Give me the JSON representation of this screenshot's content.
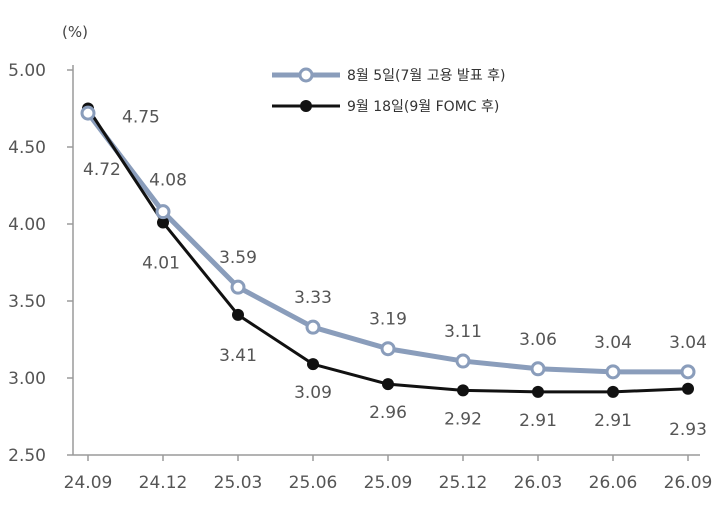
{
  "chart_data": {
    "type": "line",
    "title": "",
    "xlabel": "",
    "ylabel": "(%)",
    "categories": [
      "24.09",
      "24.12",
      "25.03",
      "25.06",
      "25.09",
      "25.12",
      "26.03",
      "26.06",
      "26.09"
    ],
    "y_ticks": [
      "5.00",
      "4.50",
      "4.00",
      "3.50",
      "3.00",
      "2.50"
    ],
    "ylim": [
      2.5,
      5.0
    ],
    "grid": false,
    "legend_position": "top-right",
    "series": [
      {
        "name": "8월 5일(7월 고용 발표 후)",
        "color": "#8a9dbb",
        "marker": "hollow-circle",
        "values": [
          4.72,
          4.08,
          3.59,
          3.33,
          3.19,
          3.11,
          3.06,
          3.04,
          3.04
        ],
        "labels": [
          "4.72",
          "4.08",
          "3.59",
          "3.33",
          "3.19",
          "3.11",
          "3.06",
          "3.04",
          "3.04"
        ]
      },
      {
        "name": "9월 18일(9월 FOMC 후)",
        "color": "#111111",
        "marker": "filled-circle",
        "values": [
          4.75,
          4.01,
          3.41,
          3.09,
          2.96,
          2.92,
          2.91,
          2.91,
          2.93
        ],
        "labels": [
          "4.75",
          "4.01",
          "3.41",
          "3.09",
          "2.96",
          "2.92",
          "2.91",
          "2.91",
          "2.93"
        ]
      }
    ]
  }
}
